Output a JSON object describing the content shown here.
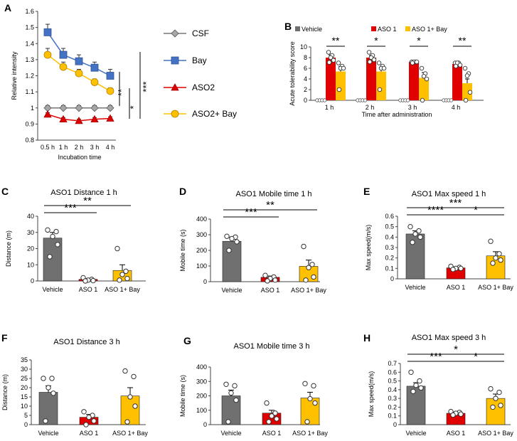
{
  "colors": {
    "csf": "#a6a6a6",
    "bay": "#4472c4",
    "aso2": "#e00000",
    "aso2bay": "#ffc000",
    "vehicle": "#707070",
    "aso1": "#e00000",
    "aso1bay": "#ffc000",
    "axis": "#444444"
  },
  "chart_data": [
    {
      "panel": "A",
      "type": "line",
      "title": "",
      "xlabel": "Incubation time",
      "ylabel": "Relative intensity",
      "categories": [
        "0.5 h",
        "1 h",
        "2 h",
        "3 h",
        "4 h"
      ],
      "ylim": [
        0.8,
        1.6
      ],
      "yticks": [
        "0.8",
        "0.9",
        "1",
        "1.1",
        "1.2",
        "1.3",
        "1.4",
        "1.5",
        "1.6"
      ],
      "series": [
        {
          "name": "CSF",
          "marker": "diamond",
          "color": "#a6a6a6",
          "values": [
            1.0,
            1.0,
            1.0,
            1.0,
            1.0
          ],
          "errors": [
            0.015,
            0.015,
            0.015,
            0.015,
            0.015
          ]
        },
        {
          "name": "Bay",
          "marker": "square",
          "color": "#4472c4",
          "values": [
            1.47,
            1.33,
            1.29,
            1.25,
            1.2
          ],
          "errors": [
            0.05,
            0.04,
            0.04,
            0.035,
            0.04
          ]
        },
        {
          "name": "ASO2",
          "marker": "triangle",
          "color": "#e00000",
          "values": [
            0.96,
            0.93,
            0.92,
            0.93,
            0.935
          ],
          "errors": [
            0.01,
            0.01,
            0.01,
            0.01,
            0.01
          ]
        },
        {
          "name": "ASO2+ Bay",
          "marker": "circle",
          "color": "#ffc000",
          "values": [
            1.33,
            1.255,
            1.215,
            1.16,
            1.105
          ],
          "errors": [
            0.04,
            0.03,
            0.025,
            0.02,
            0.02
          ]
        }
      ],
      "legend": [
        "CSF",
        "Bay",
        "ASO2",
        "ASO2+ Bay"
      ],
      "significance": [
        "**",
        "*",
        "***"
      ]
    },
    {
      "panel": "B",
      "type": "bar",
      "title": "",
      "xlabel": "Time after administration",
      "ylabel": "Acute tolerability score",
      "categories": [
        "1 h",
        "2 h",
        "3 h",
        "4 h"
      ],
      "ylim": [
        0,
        10
      ],
      "yticks": [
        "0",
        "2",
        "4",
        "6",
        "8",
        "10"
      ],
      "legend": [
        "Vehicle",
        "ASO 1",
        "ASO 1+ Bay"
      ],
      "series": [
        {
          "name": "Vehicle",
          "color": "#707070",
          "values": [
            0,
            0,
            0,
            0
          ],
          "errors": [
            0,
            0,
            0,
            0
          ]
        },
        {
          "name": "ASO 1",
          "color": "#e00000",
          "values": [
            8.0,
            8.0,
            7.2,
            6.8
          ],
          "errors": [
            0.5,
            0.4,
            0.3,
            0.3
          ]
        },
        {
          "name": "ASO 1+ Bay",
          "color": "#ffc000",
          "values": [
            5.4,
            5.4,
            4.2,
            3.2
          ],
          "errors": [
            0.9,
            0.8,
            1.0,
            0.8
          ]
        }
      ],
      "points": {
        "ASO 1": [
          [
            9,
            8.4,
            8,
            7.5,
            7.1
          ],
          [
            9,
            8.4,
            8,
            7.6,
            7.2
          ],
          [
            7.2,
            7.2,
            7.2,
            7.2,
            7.0
          ],
          [
            7,
            7,
            7,
            6.6,
            6.4
          ]
        ],
        "ASO 1+ Bay": [
          [
            7,
            6.4,
            6,
            6,
            2
          ],
          [
            7,
            6.4,
            6,
            6,
            2
          ],
          [
            6,
            5,
            4.5,
            4,
            0
          ],
          [
            6,
            5,
            4.6,
            1.5,
            0
          ]
        ]
      },
      "significance": [
        "**",
        "*",
        "*",
        "**"
      ]
    },
    {
      "panel": "C",
      "type": "bar",
      "title": "ASO1 Distance 1 h",
      "xlabel": "",
      "ylabel": "Distance (m)",
      "categories": [
        "Vehicle",
        "ASO 1",
        "ASO 1+ Bay"
      ],
      "ylim": [
        0,
        40
      ],
      "yticks": [
        "0",
        "10",
        "20",
        "30",
        "40"
      ],
      "values": [
        26.5,
        1.0,
        6.5
      ],
      "errors": [
        3.5,
        0.5,
        3.5
      ],
      "points": [
        [
          31.5,
          30.5,
          27.5,
          22.5,
          15
        ],
        [
          2,
          1,
          0.5,
          0.2,
          0
        ],
        [
          20,
          6,
          4,
          1.5,
          0.5
        ]
      ],
      "significance": [
        {
          "label": "***",
          "from": 0,
          "to": 1
        },
        {
          "label": "**",
          "from": 0,
          "to": 2
        }
      ]
    },
    {
      "panel": "D",
      "type": "bar",
      "title": "ASO1 Mobile time 1 h",
      "xlabel": "",
      "ylabel": "Mobile time (s)",
      "categories": [
        "Vehicle",
        "ASO 1",
        "ASO 1+ Bay"
      ],
      "ylim": [
        0,
        400
      ],
      "yticks": [
        "0",
        "100",
        "200",
        "300",
        "400"
      ],
      "values": [
        258,
        28,
        98
      ],
      "errors": [
        25,
        8,
        40
      ],
      "points": [
        [
          290,
          285,
          275,
          255,
          200
        ],
        [
          40,
          30,
          20,
          10,
          5
        ],
        [
          225,
          110,
          90,
          30,
          10
        ]
      ],
      "significance": [
        {
          "label": "***",
          "from": 0,
          "to": 1
        },
        {
          "label": "**",
          "from": 0,
          "to": 2
        }
      ]
    },
    {
      "panel": "E",
      "type": "bar",
      "title": "ASO1 Max speed 1 h",
      "xlabel": "",
      "ylabel": "Max speed(m/s)",
      "categories": [
        "Vehicle",
        "ASO 1",
        "ASO 1+ Bay"
      ],
      "ylim": [
        0,
        0.6
      ],
      "yticks": [
        "0",
        "0.1",
        "0.2",
        "0.3",
        "0.4",
        "0.5",
        "0.6"
      ],
      "values": [
        0.43,
        0.105,
        0.22
      ],
      "errors": [
        0.03,
        0.01,
        0.04
      ],
      "points": [
        [
          0.5,
          0.46,
          0.43,
          0.4,
          0.35
        ],
        [
          0.12,
          0.11,
          0.1,
          0.1,
          0.09
        ],
        [
          0.36,
          0.24,
          0.2,
          0.18,
          0.15
        ]
      ],
      "significance": [
        {
          "label": "****",
          "from": 0,
          "to": 1
        },
        {
          "label": "***",
          "from": 0,
          "to": 2
        },
        {
          "label": "*",
          "from": 1,
          "to": 2
        }
      ]
    },
    {
      "panel": "F",
      "type": "bar",
      "title": "ASO1 Distance 3 h",
      "xlabel": "",
      "ylabel": "Distance (m)",
      "categories": [
        "Vehicle",
        "ASO 1",
        "ASO 1+ Bay"
      ],
      "ylim": [
        0,
        35
      ],
      "yticks": [
        "0",
        "5",
        "10",
        "15",
        "20",
        "25",
        "30",
        "35"
      ],
      "values": [
        17.5,
        4.0,
        15.5
      ],
      "errors": [
        3.5,
        1.5,
        4.5
      ],
      "points": [
        [
          25,
          25,
          20,
          17,
          2
        ],
        [
          7,
          5,
          4,
          2,
          0
        ],
        [
          29,
          26,
          15,
          10,
          1.5
        ]
      ],
      "significance": []
    },
    {
      "panel": "G",
      "type": "bar",
      "title": "ASO1 Mobile time 3 h",
      "xlabel": "",
      "ylabel": "Mobile time (s)",
      "categories": [
        "Vehicle",
        "ASO 1",
        "ASO 1+ Bay"
      ],
      "ylim": [
        0,
        400
      ],
      "yticks": [
        "0",
        "100",
        "200",
        "300",
        "400"
      ],
      "values": [
        200,
        80,
        185
      ],
      "errors": [
        40,
        20,
        40
      ],
      "points": [
        [
          280,
          270,
          220,
          170,
          20
        ],
        [
          150,
          80,
          60,
          40,
          20
        ],
        [
          285,
          270,
          180,
          150,
          20
        ]
      ],
      "significance": []
    },
    {
      "panel": "H",
      "type": "bar",
      "title": "ASO1 Max speed 3 h",
      "xlabel": "",
      "ylabel": "Max speed(m/s)",
      "categories": [
        "Vehicle",
        "ASO 1",
        "ASO 1+ Bay"
      ],
      "ylim": [
        0,
        0.7
      ],
      "yticks": [
        "0",
        "0.1",
        "0.2",
        "0.3",
        "0.4",
        "0.5",
        "0.6",
        "0.7"
      ],
      "values": [
        0.44,
        0.13,
        0.3
      ],
      "errors": [
        0.04,
        0.015,
        0.05
      ],
      "points": [
        [
          0.6,
          0.5,
          0.45,
          0.42,
          0.38
        ],
        [
          0.15,
          0.14,
          0.13,
          0.12,
          0.11
        ],
        [
          0.41,
          0.37,
          0.3,
          0.22,
          0.2
        ]
      ],
      "significance": [
        {
          "label": "***",
          "from": 0,
          "to": 1
        },
        {
          "label": "*",
          "from": 0,
          "to": 2
        },
        {
          "label": "*",
          "from": 1,
          "to": 2
        }
      ]
    }
  ]
}
